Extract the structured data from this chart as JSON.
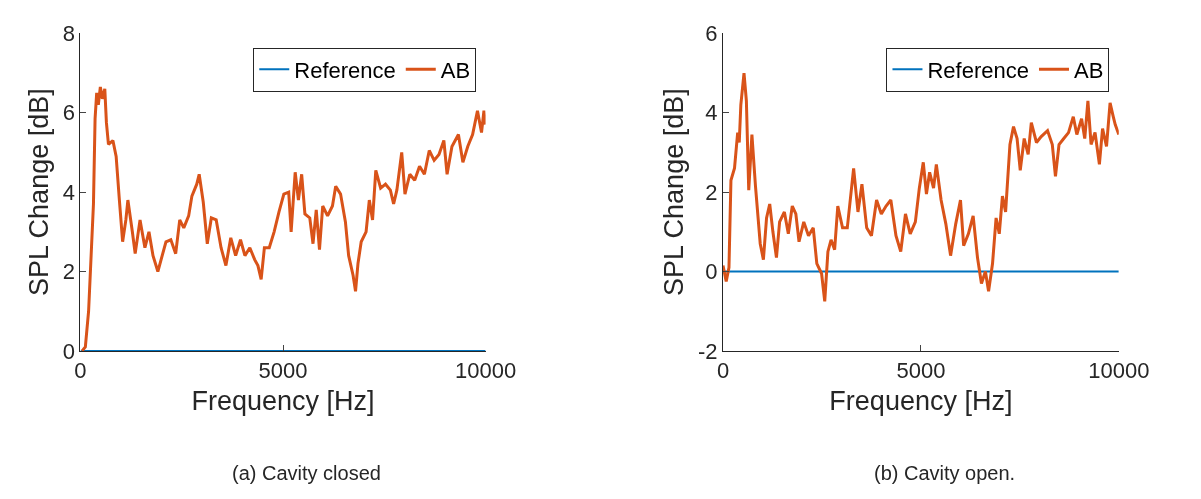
{
  "chart_data": [
    {
      "type": "line",
      "xlabel": "Frequency [Hz]",
      "ylabel": "SPL Change [dB]",
      "annotations": [
        "(a) Cavity closed"
      ],
      "xlim": [
        0,
        10000
      ],
      "xticks": [
        0,
        5000,
        10000
      ],
      "ylim": [
        0,
        8
      ],
      "yticks": [
        0,
        2,
        4,
        6,
        8
      ],
      "legend": "top right",
      "marker": "none",
      "line_style": "solid",
      "series": [
        {
          "name": "Reference",
          "color": "#0072bd",
          "x": [
            0,
            10000
          ],
          "values": [
            0,
            0
          ]
        },
        {
          "name": "AB",
          "color": "#d95319",
          "x": [
            40,
            120,
            200,
            320,
            360,
            400,
            440,
            490,
            540,
            600,
            640,
            690,
            800,
            880,
            960,
            1040,
            1120,
            1170,
            1280,
            1350,
            1470,
            1590,
            1690,
            1790,
            1910,
            1990,
            2110,
            2230,
            2350,
            2450,
            2550,
            2670,
            2750,
            2870,
            2930,
            3030,
            3130,
            3230,
            3350,
            3470,
            3590,
            3710,
            3830,
            3950,
            4060,
            4180,
            4300,
            4380,
            4460,
            4540,
            4660,
            4780,
            4900,
            5020,
            5140,
            5200,
            5300,
            5380,
            5460,
            5540,
            5660,
            5740,
            5820,
            5900,
            5980,
            6100,
            6220,
            6300,
            6420,
            6540,
            6620,
            6730,
            6790,
            6850,
            6930,
            7050,
            7130,
            7210,
            7290,
            7410,
            7530,
            7650,
            7730,
            7810,
            7930,
            8010,
            8130,
            8250,
            8370,
            8490,
            8610,
            8730,
            8850,
            8970,
            9050,
            9170,
            9330,
            9440,
            9560,
            9680,
            9800,
            9900,
            9960,
            10000
          ],
          "values": [
            0,
            0.1,
            1.0,
            3.7,
            5.85,
            6.5,
            6.2,
            6.65,
            6.35,
            6.6,
            5.75,
            5.2,
            5.3,
            4.9,
            3.8,
            2.75,
            3.3,
            3.8,
            3.0,
            2.45,
            3.3,
            2.6,
            3.0,
            2.4,
            2.0,
            2.3,
            2.75,
            2.8,
            2.45,
            3.3,
            3.1,
            3.4,
            3.9,
            4.2,
            4.45,
            3.75,
            2.7,
            3.35,
            3.3,
            2.6,
            2.15,
            2.85,
            2.4,
            2.8,
            2.4,
            2.6,
            2.3,
            2.15,
            1.8,
            2.6,
            2.6,
            3.0,
            3.5,
            3.95,
            4.0,
            3.0,
            4.5,
            3.8,
            4.45,
            3.45,
            3.35,
            2.7,
            3.55,
            2.55,
            3.65,
            3.4,
            3.65,
            4.15,
            3.95,
            3.25,
            2.4,
            1.9,
            1.5,
            2.2,
            2.75,
            3.0,
            3.8,
            3.3,
            4.55,
            4.1,
            4.2,
            4.05,
            3.7,
            4.05,
            5.0,
            3.95,
            4.45,
            4.3,
            4.65,
            4.45,
            5.05,
            4.8,
            4.95,
            5.3,
            4.45,
            5.15,
            5.45,
            4.75,
            5.15,
            5.45,
            6.05,
            5.5,
            6.05,
            5.7
          ]
        }
      ]
    },
    {
      "type": "line",
      "xlabel": "Frequency [Hz]",
      "ylabel": "SPL Change [dB]",
      "annotations": [
        "(b) Cavity open."
      ],
      "xlim": [
        0,
        10000
      ],
      "xticks": [
        0,
        5000,
        10000
      ],
      "ylim": [
        -2,
        6
      ],
      "yticks": [
        -2,
        0,
        2,
        4,
        6
      ],
      "legend": "top right",
      "marker": "none",
      "line_style": "solid",
      "series": [
        {
          "name": "Reference",
          "color": "#0072bd",
          "x": [
            0,
            10000
          ],
          "values": [
            0,
            0
          ]
        },
        {
          "name": "AB",
          "color": "#d95319",
          "x": [
            0,
            80,
            150,
            200,
            290,
            370,
            410,
            450,
            530,
            590,
            650,
            730,
            820,
            940,
            1020,
            1100,
            1180,
            1260,
            1350,
            1430,
            1550,
            1650,
            1750,
            1840,
            1920,
            2040,
            2160,
            2280,
            2370,
            2490,
            2570,
            2650,
            2730,
            2820,
            2900,
            3020,
            3140,
            3300,
            3410,
            3510,
            3630,
            3750,
            3880,
            4000,
            4120,
            4240,
            4370,
            4490,
            4610,
            4730,
            4860,
            4960,
            5060,
            5140,
            5220,
            5320,
            5390,
            5510,
            5630,
            5750,
            5880,
            6000,
            6080,
            6200,
            6320,
            6430,
            6530,
            6630,
            6710,
            6810,
            6900,
            6980,
            7060,
            7140,
            7250,
            7340,
            7430,
            7510,
            7610,
            7710,
            7790,
            7920,
            8040,
            8200,
            8320,
            8400,
            8490,
            8610,
            8730,
            8850,
            8940,
            9060,
            9140,
            9220,
            9300,
            9400,
            9510,
            9590,
            9690,
            9780,
            9860,
            9910,
            10000
          ],
          "values": [
            0.15,
            -0.25,
            0.1,
            2.3,
            2.6,
            3.5,
            3.25,
            4.2,
            5.0,
            4.3,
            2.05,
            3.45,
            2.15,
            0.7,
            0.3,
            1.35,
            1.7,
            1.0,
            0.35,
            1.25,
            1.5,
            0.95,
            1.65,
            1.45,
            0.75,
            1.25,
            0.9,
            1.1,
            0.2,
            -0.05,
            -0.75,
            0.5,
            0.8,
            0.55,
            1.65,
            1.1,
            1.1,
            2.6,
            1.5,
            2.2,
            1.1,
            0.9,
            1.8,
            1.45,
            1.65,
            1.8,
            0.9,
            0.5,
            1.45,
            0.95,
            1.25,
            2.1,
            2.75,
            1.95,
            2.5,
            2.1,
            2.7,
            1.8,
            1.2,
            0.4,
            1.2,
            1.8,
            0.65,
            0.95,
            1.4,
            0.35,
            -0.3,
            0.0,
            -0.5,
            0.2,
            1.35,
            0.95,
            1.9,
            1.5,
            3.2,
            3.65,
            3.35,
            2.55,
            3.35,
            2.95,
            3.75,
            3.25,
            3.4,
            3.55,
            3.2,
            2.4,
            3.2,
            3.35,
            3.5,
            3.9,
            3.45,
            3.85,
            3.35,
            4.3,
            3.2,
            3.5,
            2.7,
            3.6,
            3.15,
            4.25,
            3.9,
            3.7,
            3.45
          ]
        }
      ]
    }
  ]
}
